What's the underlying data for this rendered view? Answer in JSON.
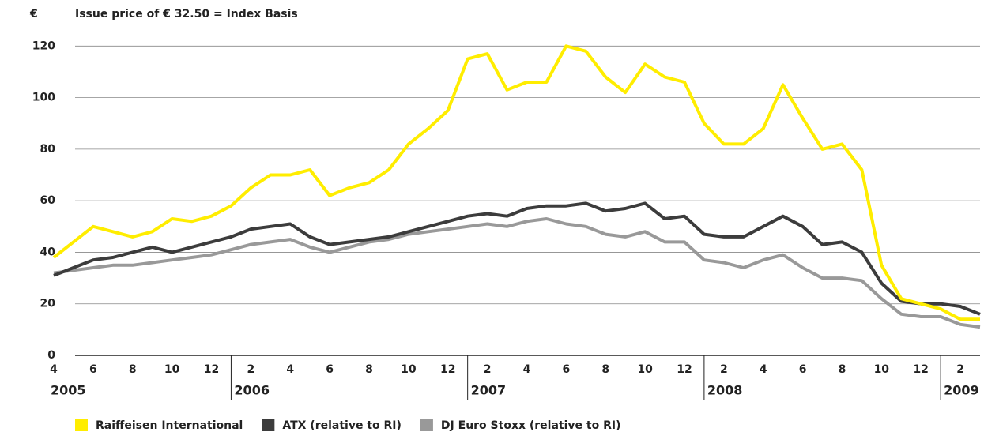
{
  "chart_data": {
    "type": "line",
    "y_unit": "€",
    "subtitle": "Issue price of € 32.50 = Index Basis",
    "x": [
      "2005-04",
      "2005-05",
      "2005-06",
      "2005-07",
      "2005-08",
      "2005-09",
      "2005-10",
      "2005-11",
      "2005-12",
      "2006-01",
      "2006-02",
      "2006-03",
      "2006-04",
      "2006-05",
      "2006-06",
      "2006-07",
      "2006-08",
      "2006-09",
      "2006-10",
      "2006-11",
      "2006-12",
      "2007-01",
      "2007-02",
      "2007-03",
      "2007-04",
      "2007-05",
      "2007-06",
      "2007-07",
      "2007-08",
      "2007-09",
      "2007-10",
      "2007-11",
      "2007-12",
      "2008-01",
      "2008-02",
      "2008-03",
      "2008-04",
      "2008-05",
      "2008-06",
      "2008-07",
      "2008-08",
      "2008-09",
      "2008-10",
      "2008-11",
      "2008-12",
      "2009-01",
      "2009-02",
      "2009-03"
    ],
    "series": [
      {
        "name": "Raiffeisen International",
        "color": "#ffed00",
        "values": [
          38,
          44,
          50,
          48,
          46,
          48,
          53,
          52,
          54,
          58,
          65,
          70,
          70,
          72,
          62,
          65,
          67,
          72,
          82,
          88,
          95,
          115,
          117,
          103,
          106,
          106,
          120,
          118,
          108,
          102,
          113,
          108,
          106,
          90,
          82,
          82,
          88,
          105,
          92,
          80,
          82,
          72,
          35,
          22,
          20,
          18,
          14,
          14
        ]
      },
      {
        "name": "ATX (relative to RI)",
        "color": "#3c3c3c",
        "values": [
          31,
          34,
          37,
          38,
          40,
          42,
          40,
          42,
          44,
          46,
          49,
          50,
          51,
          46,
          43,
          44,
          45,
          46,
          48,
          50,
          52,
          54,
          55,
          54,
          57,
          58,
          58,
          59,
          56,
          57,
          59,
          53,
          54,
          47,
          46,
          46,
          50,
          54,
          50,
          43,
          44,
          40,
          28,
          21,
          20,
          20,
          19,
          16
        ]
      },
      {
        "name": "DJ Euro Stoxx (relative to RI)",
        "color": "#999999",
        "values": [
          32,
          33,
          34,
          35,
          35,
          36,
          37,
          38,
          39,
          41,
          43,
          44,
          45,
          42,
          40,
          42,
          44,
          45,
          47,
          48,
          49,
          50,
          51,
          50,
          52,
          53,
          51,
          50,
          47,
          46,
          48,
          44,
          44,
          37,
          36,
          34,
          37,
          39,
          34,
          30,
          30,
          29,
          22,
          16,
          15,
          15,
          12,
          11
        ]
      }
    ],
    "xlim": [
      "2005-04",
      "2009-03"
    ],
    "ylim": [
      0,
      125
    ],
    "yticks": [
      0,
      20,
      40,
      60,
      80,
      100,
      120
    ],
    "grid": true,
    "xticks": [
      {
        "value": "2005-04",
        "label": "4"
      },
      {
        "value": "2005-06",
        "label": "6"
      },
      {
        "value": "2005-08",
        "label": "8"
      },
      {
        "value": "2005-10",
        "label": "10"
      },
      {
        "value": "2005-12",
        "label": "12"
      },
      {
        "value": "2006-02",
        "label": "2"
      },
      {
        "value": "2006-04",
        "label": "4"
      },
      {
        "value": "2006-06",
        "label": "6"
      },
      {
        "value": "2006-08",
        "label": "8"
      },
      {
        "value": "2006-10",
        "label": "10"
      },
      {
        "value": "2006-12",
        "label": "12"
      },
      {
        "value": "2007-02",
        "label": "2"
      },
      {
        "value": "2007-04",
        "label": "4"
      },
      {
        "value": "2007-06",
        "label": "6"
      },
      {
        "value": "2007-08",
        "label": "8"
      },
      {
        "value": "2007-10",
        "label": "10"
      },
      {
        "value": "2007-12",
        "label": "12"
      },
      {
        "value": "2008-02",
        "label": "2"
      },
      {
        "value": "2008-04",
        "label": "4"
      },
      {
        "value": "2008-06",
        "label": "6"
      },
      {
        "value": "2008-08",
        "label": "8"
      },
      {
        "value": "2008-10",
        "label": "10"
      },
      {
        "value": "2008-12",
        "label": "12"
      },
      {
        "value": "2009-02",
        "label": "2"
      }
    ],
    "year_ticks": [
      {
        "value": "2005-04",
        "label": "2005"
      },
      {
        "value": "2006-01",
        "label": "2006"
      },
      {
        "value": "2007-01",
        "label": "2007"
      },
      {
        "value": "2008-01",
        "label": "2008"
      },
      {
        "value": "2009-01",
        "label": "2009"
      }
    ]
  }
}
